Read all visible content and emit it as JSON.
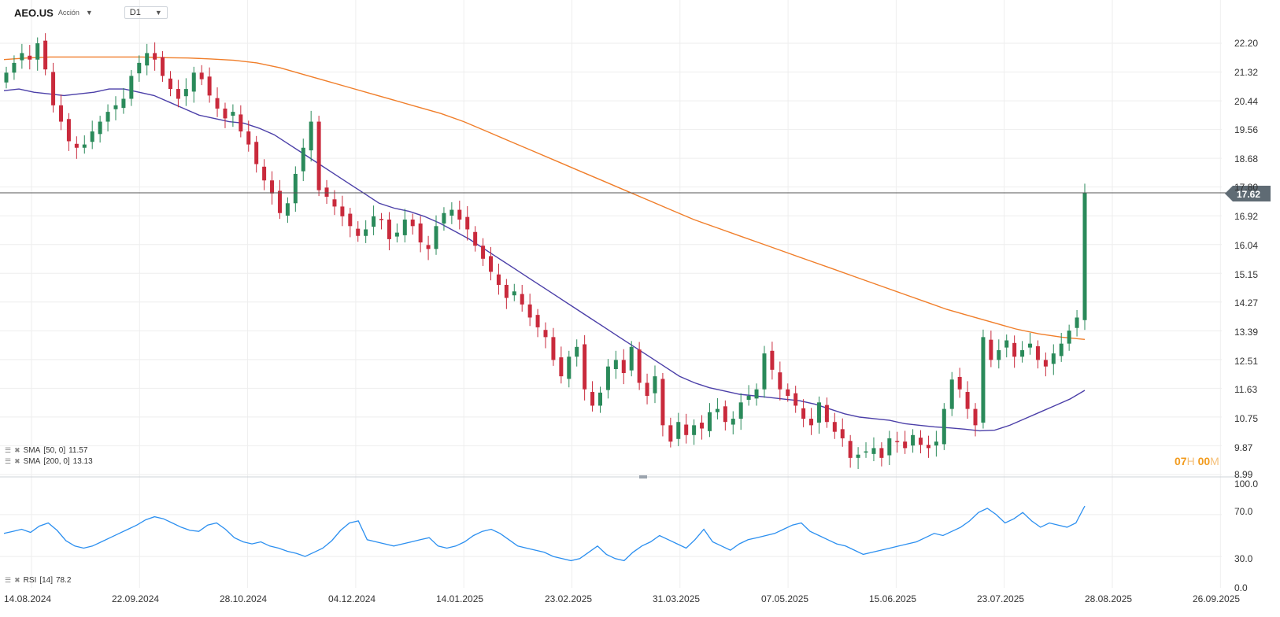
{
  "header": {
    "symbol": "AEO.US",
    "type_label": "Acción",
    "timeframe": "D1"
  },
  "indicators": {
    "sma50": {
      "label": "SMA",
      "params": "[50, 0]",
      "value": "11.57",
      "color": "#4b3fa8"
    },
    "sma200": {
      "label": "SMA",
      "params": "[200, 0]",
      "value": "13.13",
      "color": "#f07e2a"
    },
    "rsi": {
      "label": "RSI",
      "params": "[14]",
      "value": "78.2",
      "color": "#2b8ff0"
    }
  },
  "countdown": {
    "hours": "07",
    "hour_unit": "H",
    "minutes": "00",
    "minute_unit": "M"
  },
  "price_axis": {
    "ticks": [
      "22.20",
      "21.32",
      "20.44",
      "19.56",
      "18.68",
      "17.80",
      "16.92",
      "16.04",
      "15.15",
      "14.27",
      "13.39",
      "12.51",
      "11.63",
      "10.75",
      "9.87",
      "8.99"
    ]
  },
  "rsi_axis": {
    "ticks": [
      "100.0",
      "70.0",
      "30.0",
      "0.0"
    ]
  },
  "date_axis": {
    "ticks": [
      "14.08.2024",
      "22.09.2024",
      "28.10.2024",
      "04.12.2024",
      "14.01.2025",
      "23.02.2025",
      "31.03.2025",
      "07.05.2025",
      "15.06.2025",
      "23.07.2025",
      "28.08.2025",
      "26.09.2025"
    ]
  },
  "current_price": {
    "value": "17.62"
  },
  "colors": {
    "up": "#2a8a5a",
    "down": "#c92a3c",
    "grid": "#eeeeee",
    "price_line": "#555555"
  },
  "chart_data": {
    "type": "candlestick",
    "xaxis": "date",
    "date_range": [
      "14.08.2024",
      "28.08.2025"
    ],
    "ylim": [
      8.99,
      22.2
    ],
    "rsi_ylim": [
      0,
      100
    ],
    "last_price": 17.62,
    "closes": [
      21.3,
      21.6,
      21.9,
      21.7,
      22.2,
      21.4,
      20.3,
      19.8,
      19.2,
      19.0,
      19.1,
      19.5,
      19.8,
      20.1,
      20.3,
      20.5,
      21.2,
      21.6,
      21.9,
      21.7,
      21.2,
      20.8,
      20.5,
      20.8,
      21.3,
      21.1,
      20.6,
      20.2,
      19.9,
      20.1,
      19.5,
      19.1,
      18.5,
      18.0,
      17.6,
      17.0,
      17.3,
      18.2,
      19.0,
      19.8,
      17.7,
      17.5,
      17.2,
      16.9,
      16.6,
      16.3,
      16.5,
      16.9,
      16.8,
      16.2,
      16.4,
      16.8,
      16.6,
      16.1,
      15.9,
      16.6,
      17.0,
      17.1,
      16.8,
      16.5,
      16.0,
      15.6,
      15.2,
      14.8,
      14.4,
      14.6,
      14.2,
      13.8,
      13.5,
      13.2,
      12.5,
      12.0,
      12.6,
      12.9,
      11.6,
      11.1,
      11.5,
      12.3,
      12.5,
      12.1,
      12.9,
      11.8,
      11.4,
      12.0,
      10.5,
      10.0,
      10.6,
      10.2,
      10.5,
      10.4,
      10.9,
      11.0,
      10.6,
      10.7,
      11.2,
      11.4,
      11.6,
      12.7,
      12.2,
      11.6,
      11.4,
      11.1,
      10.7,
      10.5,
      11.2,
      10.6,
      10.3,
      10.1,
      9.5,
      9.6,
      9.7,
      9.8,
      9.5,
      10.1,
      10.0,
      9.8,
      10.2,
      9.9,
      9.8,
      10.0,
      11.0,
      11.9,
      11.6,
      11.0,
      10.5,
      13.2,
      12.5,
      12.8,
      13.1,
      12.6,
      12.8,
      13.0,
      12.5,
      12.3,
      12.7,
      13.0,
      13.4,
      13.8,
      17.62
    ],
    "sma50": [
      20.75,
      20.8,
      20.7,
      20.65,
      20.6,
      20.65,
      20.7,
      20.8,
      20.8,
      20.7,
      20.6,
      20.4,
      20.2,
      20.0,
      19.9,
      19.8,
      19.75,
      19.6,
      19.4,
      19.1,
      18.8,
      18.5,
      18.2,
      17.9,
      17.6,
      17.3,
      17.15,
      17.05,
      16.9,
      16.7,
      16.45,
      16.2,
      15.9,
      15.6,
      15.3,
      15.0,
      14.7,
      14.4,
      14.1,
      13.8,
      13.5,
      13.2,
      12.9,
      12.6,
      12.3,
      12.0,
      11.8,
      11.65,
      11.55,
      11.45,
      11.4,
      11.35,
      11.3,
      11.25,
      11.15,
      11.0,
      10.85,
      10.75,
      10.7,
      10.65,
      10.55,
      10.5,
      10.45,
      10.42,
      10.38,
      10.33,
      10.35,
      10.5,
      10.7,
      10.9,
      11.1,
      11.3,
      11.57
    ],
    "sma200": [
      21.7,
      21.75,
      21.78,
      21.78,
      21.78,
      21.78,
      21.78,
      21.76,
      21.75,
      21.72,
      21.68,
      21.6,
      21.45,
      21.25,
      21.05,
      20.85,
      20.65,
      20.45,
      20.25,
      20.05,
      19.8,
      19.5,
      19.2,
      18.9,
      18.6,
      18.3,
      18.0,
      17.7,
      17.4,
      17.1,
      16.8,
      16.55,
      16.3,
      16.05,
      15.8,
      15.55,
      15.3,
      15.05,
      14.8,
      14.55,
      14.3,
      14.05,
      13.85,
      13.65,
      13.45,
      13.3,
      13.2,
      13.13
    ],
    "rsi": [
      52,
      54,
      56,
      53,
      59,
      62,
      55,
      45,
      40,
      38,
      40,
      44,
      48,
      52,
      56,
      60,
      65,
      68,
      66,
      62,
      58,
      55,
      54,
      60,
      62,
      56,
      48,
      44,
      42,
      44,
      40,
      38,
      35,
      33,
      30,
      34,
      38,
      45,
      55,
      62,
      64,
      46,
      44,
      42,
      40,
      42,
      44,
      46,
      48,
      40,
      38,
      40,
      44,
      50,
      54,
      56,
      52,
      46,
      40,
      38,
      36,
      34,
      30,
      28,
      26,
      28,
      34,
      40,
      32,
      28,
      26,
      34,
      40,
      44,
      50,
      46,
      42,
      38,
      46,
      56,
      44,
      40,
      36,
      42,
      46,
      48,
      50,
      52,
      56,
      60,
      62,
      54,
      50,
      46,
      42,
      40,
      36,
      32,
      34,
      36,
      38,
      40,
      42,
      44,
      48,
      52,
      50,
      54,
      58,
      64,
      72,
      76,
      70,
      62,
      66,
      72,
      64,
      58,
      62,
      60,
      58,
      62,
      78.2
    ]
  }
}
